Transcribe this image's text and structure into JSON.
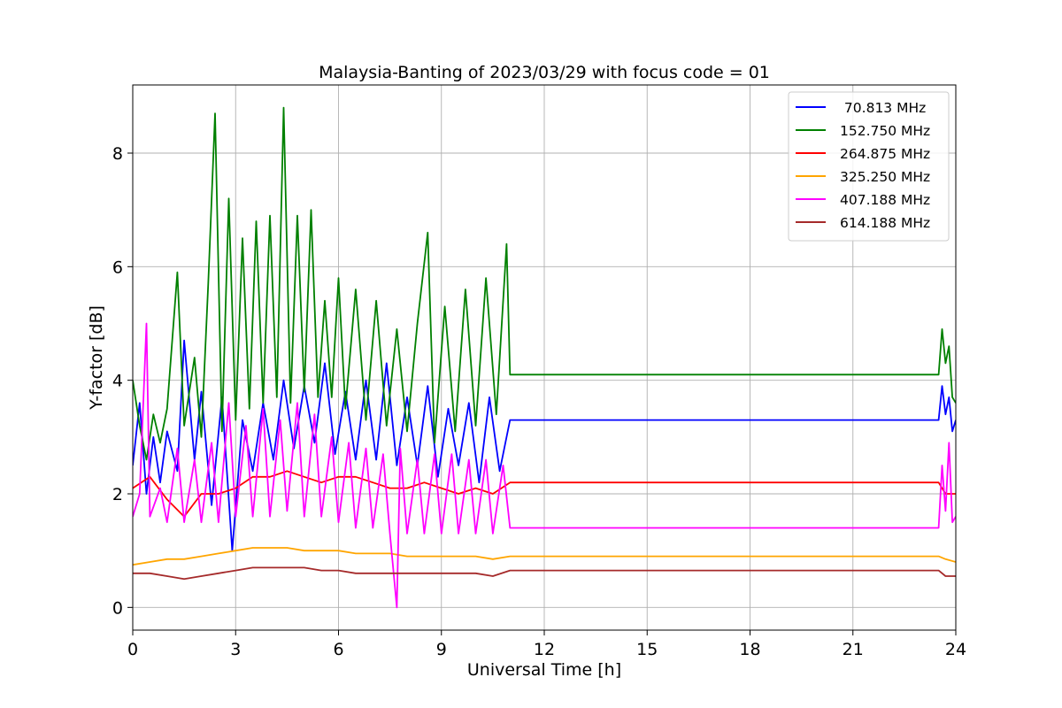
{
  "chart_data": {
    "type": "line",
    "title": "Malaysia-Banting of 2023/03/29 with focus code = 01",
    "xlabel": "Universal Time [h]",
    "ylabel": "Y-factor [dB]",
    "xlim": [
      0,
      24
    ],
    "ylim": [
      -0.4,
      9.2
    ],
    "xticks": [
      0,
      3,
      6,
      9,
      12,
      15,
      18,
      21,
      24
    ],
    "yticks": [
      0,
      2,
      4,
      6,
      8
    ],
    "grid": true,
    "legend_position": "top-right",
    "series": [
      {
        "name": " 70.813 MHz",
        "color": "#0000ff",
        "points": [
          [
            0,
            2.5
          ],
          [
            0.2,
            3.6
          ],
          [
            0.4,
            2.0
          ],
          [
            0.6,
            3.0
          ],
          [
            0.8,
            2.2
          ],
          [
            1.0,
            3.1
          ],
          [
            1.3,
            2.4
          ],
          [
            1.5,
            4.7
          ],
          [
            1.8,
            2.6
          ],
          [
            2.0,
            3.8
          ],
          [
            2.3,
            1.8
          ],
          [
            2.6,
            3.7
          ],
          [
            2.9,
            1.0
          ],
          [
            3.2,
            3.3
          ],
          [
            3.5,
            2.4
          ],
          [
            3.8,
            3.6
          ],
          [
            4.1,
            2.6
          ],
          [
            4.4,
            4.0
          ],
          [
            4.7,
            2.8
          ],
          [
            5.0,
            3.9
          ],
          [
            5.3,
            2.9
          ],
          [
            5.6,
            4.3
          ],
          [
            5.9,
            2.7
          ],
          [
            6.2,
            3.8
          ],
          [
            6.5,
            2.6
          ],
          [
            6.8,
            4.0
          ],
          [
            7.1,
            2.6
          ],
          [
            7.4,
            4.3
          ],
          [
            7.7,
            2.5
          ],
          [
            8.0,
            3.7
          ],
          [
            8.3,
            2.5
          ],
          [
            8.6,
            3.9
          ],
          [
            8.9,
            2.3
          ],
          [
            9.2,
            3.5
          ],
          [
            9.5,
            2.5
          ],
          [
            9.8,
            3.6
          ],
          [
            10.1,
            2.2
          ],
          [
            10.4,
            3.7
          ],
          [
            10.7,
            2.4
          ],
          [
            11.0,
            3.3
          ],
          [
            23.5,
            3.3
          ],
          [
            23.6,
            3.9
          ],
          [
            23.7,
            3.4
          ],
          [
            23.8,
            3.7
          ],
          [
            23.9,
            3.1
          ],
          [
            24.0,
            3.3
          ]
        ]
      },
      {
        "name": "152.750 MHz",
        "color": "#008000",
        "points": [
          [
            0,
            4.0
          ],
          [
            0.2,
            3.2
          ],
          [
            0.4,
            2.6
          ],
          [
            0.6,
            3.4
          ],
          [
            0.8,
            2.9
          ],
          [
            1.0,
            3.5
          ],
          [
            1.3,
            5.9
          ],
          [
            1.5,
            3.2
          ],
          [
            1.8,
            4.4
          ],
          [
            2.0,
            3.0
          ],
          [
            2.2,
            5.7
          ],
          [
            2.4,
            8.7
          ],
          [
            2.6,
            3.1
          ],
          [
            2.8,
            7.2
          ],
          [
            3.0,
            3.3
          ],
          [
            3.2,
            6.5
          ],
          [
            3.4,
            3.5
          ],
          [
            3.6,
            6.8
          ],
          [
            3.8,
            3.6
          ],
          [
            4.0,
            6.9
          ],
          [
            4.2,
            3.7
          ],
          [
            4.4,
            8.8
          ],
          [
            4.6,
            3.6
          ],
          [
            4.8,
            6.9
          ],
          [
            5.0,
            3.8
          ],
          [
            5.2,
            7.0
          ],
          [
            5.4,
            3.7
          ],
          [
            5.6,
            5.4
          ],
          [
            5.8,
            3.7
          ],
          [
            6.0,
            5.8
          ],
          [
            6.2,
            3.5
          ],
          [
            6.5,
            5.6
          ],
          [
            6.8,
            3.3
          ],
          [
            7.1,
            5.4
          ],
          [
            7.4,
            3.2
          ],
          [
            7.7,
            4.9
          ],
          [
            8.0,
            3.1
          ],
          [
            8.3,
            5.0
          ],
          [
            8.6,
            6.6
          ],
          [
            8.8,
            2.9
          ],
          [
            9.1,
            5.3
          ],
          [
            9.4,
            3.1
          ],
          [
            9.7,
            5.6
          ],
          [
            10.0,
            3.2
          ],
          [
            10.3,
            5.8
          ],
          [
            10.6,
            3.4
          ],
          [
            10.9,
            6.4
          ],
          [
            11.0,
            4.1
          ],
          [
            23.5,
            4.1
          ],
          [
            23.6,
            4.9
          ],
          [
            23.7,
            4.3
          ],
          [
            23.8,
            4.6
          ],
          [
            23.9,
            3.7
          ],
          [
            24.0,
            3.6
          ]
        ]
      },
      {
        "name": "264.875 MHz",
        "color": "#ff0000",
        "points": [
          [
            0,
            2.1
          ],
          [
            0.5,
            2.3
          ],
          [
            1.0,
            1.9
          ],
          [
            1.5,
            1.6
          ],
          [
            2.0,
            2.0
          ],
          [
            2.5,
            2.0
          ],
          [
            3.0,
            2.1
          ],
          [
            3.5,
            2.3
          ],
          [
            4.0,
            2.3
          ],
          [
            4.5,
            2.4
          ],
          [
            5.0,
            2.3
          ],
          [
            5.5,
            2.2
          ],
          [
            6.0,
            2.3
          ],
          [
            6.5,
            2.3
          ],
          [
            7.0,
            2.2
          ],
          [
            7.5,
            2.1
          ],
          [
            8.0,
            2.1
          ],
          [
            8.5,
            2.2
          ],
          [
            9.0,
            2.1
          ],
          [
            9.5,
            2.0
          ],
          [
            10.0,
            2.1
          ],
          [
            10.5,
            2.0
          ],
          [
            11.0,
            2.2
          ],
          [
            23.5,
            2.2
          ],
          [
            23.7,
            2.0
          ],
          [
            24.0,
            2.0
          ]
        ]
      },
      {
        "name": "325.250 MHz",
        "color": "#ffa500",
        "points": [
          [
            0,
            0.75
          ],
          [
            0.5,
            0.8
          ],
          [
            1.0,
            0.85
          ],
          [
            1.5,
            0.85
          ],
          [
            2.0,
            0.9
          ],
          [
            2.5,
            0.95
          ],
          [
            3.0,
            1.0
          ],
          [
            3.5,
            1.05
          ],
          [
            4.0,
            1.05
          ],
          [
            4.5,
            1.05
          ],
          [
            5.0,
            1.0
          ],
          [
            5.5,
            1.0
          ],
          [
            6.0,
            1.0
          ],
          [
            6.5,
            0.95
          ],
          [
            7.0,
            0.95
          ],
          [
            7.5,
            0.95
          ],
          [
            8.0,
            0.9
          ],
          [
            8.5,
            0.9
          ],
          [
            9.0,
            0.9
          ],
          [
            9.5,
            0.9
          ],
          [
            10.0,
            0.9
          ],
          [
            10.5,
            0.85
          ],
          [
            11.0,
            0.9
          ],
          [
            23.5,
            0.9
          ],
          [
            23.7,
            0.85
          ],
          [
            24.0,
            0.8
          ]
        ]
      },
      {
        "name": "407.188 MHz",
        "color": "#ff00ff",
        "points": [
          [
            0,
            1.6
          ],
          [
            0.2,
            2.0
          ],
          [
            0.4,
            5.0
          ],
          [
            0.5,
            1.6
          ],
          [
            0.8,
            2.1
          ],
          [
            1.0,
            1.5
          ],
          [
            1.3,
            2.8
          ],
          [
            1.5,
            1.5
          ],
          [
            1.8,
            2.6
          ],
          [
            2.0,
            1.5
          ],
          [
            2.3,
            2.9
          ],
          [
            2.5,
            1.5
          ],
          [
            2.8,
            3.6
          ],
          [
            3.0,
            1.6
          ],
          [
            3.3,
            3.2
          ],
          [
            3.5,
            1.6
          ],
          [
            3.8,
            3.5
          ],
          [
            4.0,
            1.6
          ],
          [
            4.3,
            3.3
          ],
          [
            4.5,
            1.7
          ],
          [
            4.8,
            3.6
          ],
          [
            5.0,
            1.6
          ],
          [
            5.3,
            3.4
          ],
          [
            5.5,
            1.6
          ],
          [
            5.8,
            3.0
          ],
          [
            6.0,
            1.5
          ],
          [
            6.3,
            2.9
          ],
          [
            6.5,
            1.4
          ],
          [
            6.8,
            2.8
          ],
          [
            7.0,
            1.4
          ],
          [
            7.3,
            2.7
          ],
          [
            7.5,
            1.3
          ],
          [
            7.7,
            0.0
          ],
          [
            7.8,
            2.8
          ],
          [
            8.0,
            1.3
          ],
          [
            8.3,
            2.6
          ],
          [
            8.5,
            1.3
          ],
          [
            8.8,
            2.7
          ],
          [
            9.0,
            1.3
          ],
          [
            9.3,
            2.7
          ],
          [
            9.5,
            1.3
          ],
          [
            9.8,
            2.6
          ],
          [
            10.0,
            1.3
          ],
          [
            10.3,
            2.6
          ],
          [
            10.5,
            1.3
          ],
          [
            10.8,
            2.5
          ],
          [
            11.0,
            1.4
          ],
          [
            23.5,
            1.4
          ],
          [
            23.6,
            2.5
          ],
          [
            23.7,
            1.7
          ],
          [
            23.8,
            2.9
          ],
          [
            23.9,
            1.5
          ],
          [
            24.0,
            1.6
          ]
        ]
      },
      {
        "name": "614.188 MHz",
        "color": "#a52a2a",
        "points": [
          [
            0,
            0.6
          ],
          [
            0.5,
            0.6
          ],
          [
            1.0,
            0.55
          ],
          [
            1.5,
            0.5
          ],
          [
            2.0,
            0.55
          ],
          [
            2.5,
            0.6
          ],
          [
            3.0,
            0.65
          ],
          [
            3.5,
            0.7
          ],
          [
            4.0,
            0.7
          ],
          [
            4.5,
            0.7
          ],
          [
            5.0,
            0.7
          ],
          [
            5.5,
            0.65
          ],
          [
            6.0,
            0.65
          ],
          [
            6.5,
            0.6
          ],
          [
            7.0,
            0.6
          ],
          [
            7.5,
            0.6
          ],
          [
            8.0,
            0.6
          ],
          [
            8.5,
            0.6
          ],
          [
            9.0,
            0.6
          ],
          [
            9.5,
            0.6
          ],
          [
            10.0,
            0.6
          ],
          [
            10.5,
            0.55
          ],
          [
            11.0,
            0.65
          ],
          [
            23.5,
            0.65
          ],
          [
            23.7,
            0.55
          ],
          [
            24.0,
            0.55
          ]
        ]
      }
    ]
  }
}
